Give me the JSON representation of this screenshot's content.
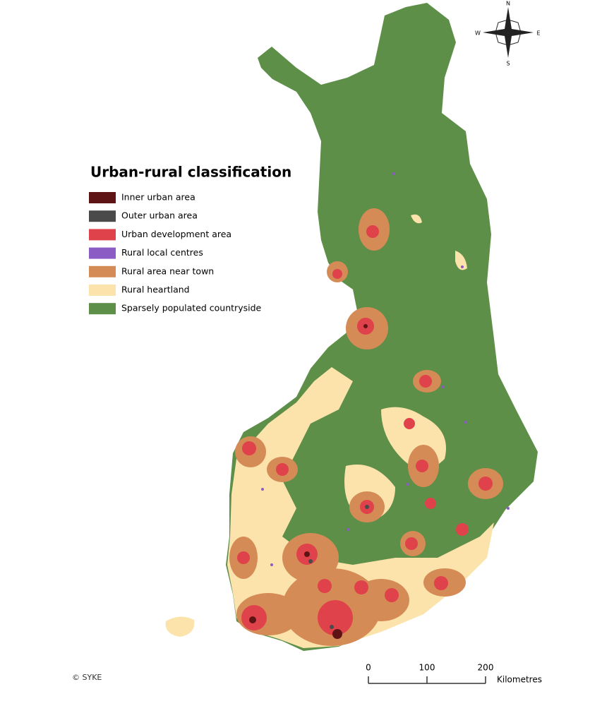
{
  "title": "Urban-rural classification",
  "legend": [
    {
      "label": "Inner urban area",
      "color": "#5e1414"
    },
    {
      "label": "Outer urban area",
      "color": "#4a4a4a"
    },
    {
      "label": "Urban development area",
      "color": "#e0424b"
    },
    {
      "label": "Rural local centres",
      "color": "#8a5cc4"
    },
    {
      "label": "Rural area near town",
      "color": "#d58b55"
    },
    {
      "label": "Rural heartland",
      "color": "#fbe3ab"
    },
    {
      "label": "Sparsely populated countryside",
      "color": "#5e8f48"
    }
  ],
  "scale_bar": {
    "ticks": [
      0,
      100,
      200
    ],
    "unit": "Kilometres"
  },
  "compass": {
    "n": "N",
    "e": "E",
    "s": "S",
    "w": "W"
  },
  "credit": "© SYKE"
}
